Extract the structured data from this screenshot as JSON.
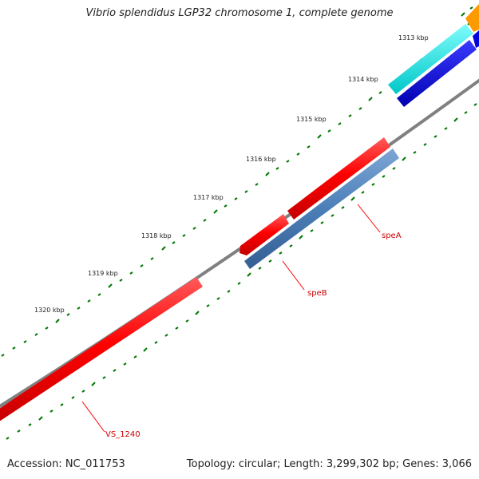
{
  "title": "Vibrio splendidus LGP32 chromosome 1, complete genome",
  "accession_text": "Accession: NC_011753",
  "summary_text": "Topology: circular; Length: 3,299,302 bp; Genes: 3,066",
  "ticks": [
    {
      "label": "1313 kbp"
    },
    {
      "label": "1314 kbp"
    },
    {
      "label": "1315 kbp"
    },
    {
      "label": "1316 kbp"
    },
    {
      "label": "1317 kbp"
    },
    {
      "label": "1318 kbp"
    },
    {
      "label": "1319 kbp"
    },
    {
      "label": "1320 kbp"
    }
  ],
  "genes": [
    {
      "label": "speA"
    },
    {
      "label": "speB"
    },
    {
      "label": "VS_1240"
    }
  ],
  "colors": {
    "backbone": "#808080",
    "cds_forward": "#ff0000",
    "cds_reverse": "#4b7fb8",
    "cyan_feature": "#00e5e5",
    "blue_feature": "#0000dd",
    "orange_feature": "#ff9900",
    "tick": "#007700",
    "label_line": "#ff0000"
  }
}
